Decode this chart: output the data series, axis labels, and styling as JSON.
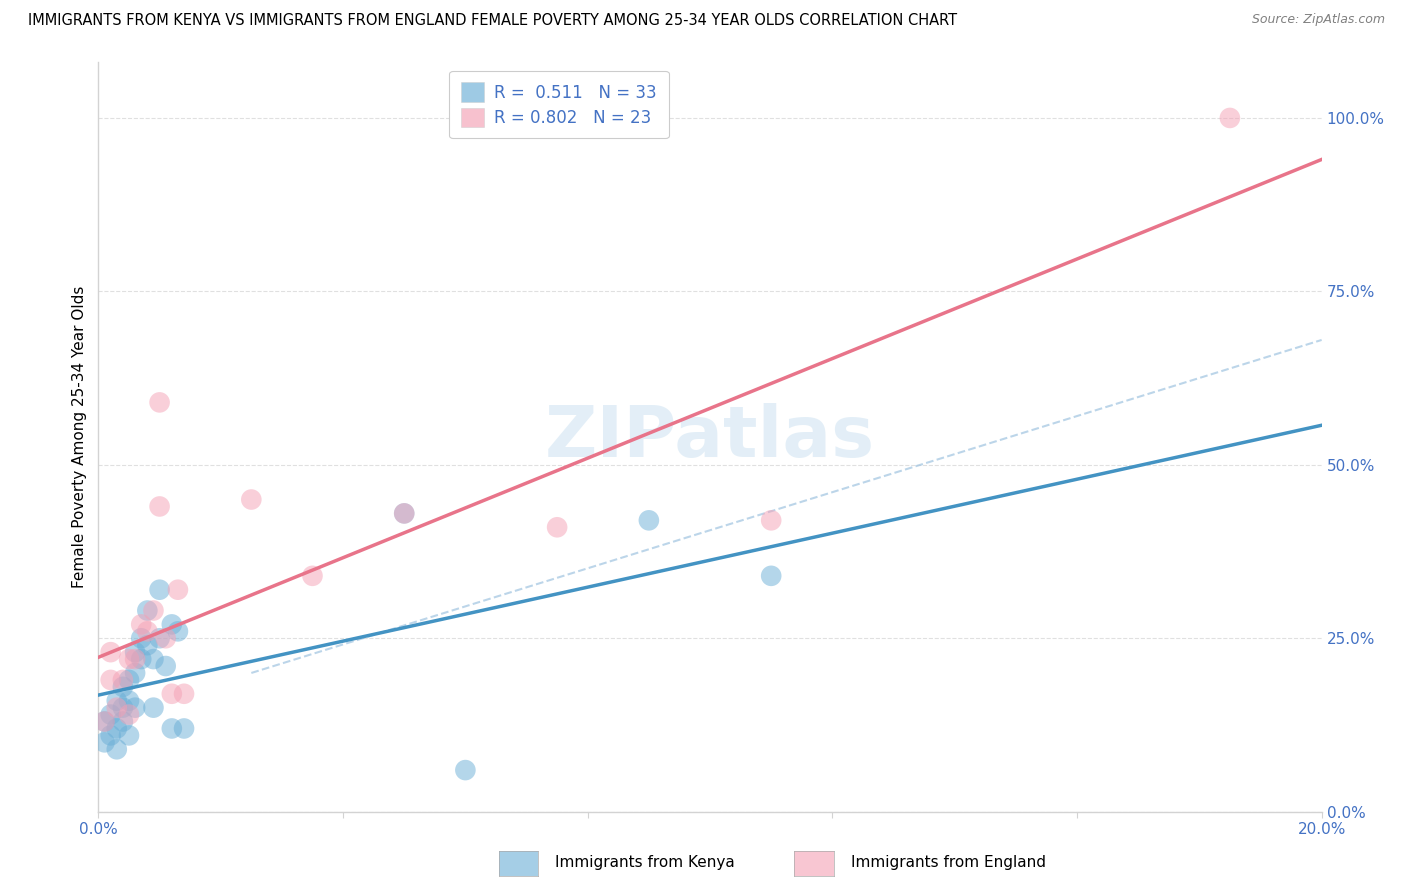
{
  "title": "IMMIGRANTS FROM KENYA VS IMMIGRANTS FROM ENGLAND FEMALE POVERTY AMONG 25-34 YEAR OLDS CORRELATION CHART",
  "source": "Source: ZipAtlas.com",
  "ylabel": "Female Poverty Among 25-34 Year Olds",
  "xlim": [
    0.0,
    0.2
  ],
  "ylim": [
    0.0,
    1.08
  ],
  "right_yticks": [
    0.0,
    0.25,
    0.5,
    0.75,
    1.0
  ],
  "right_yticklabels": [
    "0.0%",
    "25.0%",
    "50.0%",
    "75.0%",
    "100.0%"
  ],
  "xtick_positions": [
    0.0,
    0.04,
    0.08,
    0.12,
    0.16,
    0.2
  ],
  "xticklabels": [
    "0.0%",
    "",
    "",
    "",
    "",
    "20.0%"
  ],
  "kenya_color": "#6aaed6",
  "england_color": "#f4a0b5",
  "kenya_line_color": "#4393c3",
  "england_line_color": "#e8748a",
  "kenya_R": 0.511,
  "kenya_N": 33,
  "england_R": 0.802,
  "england_N": 23,
  "kenya_scatter_x": [
    0.001,
    0.001,
    0.002,
    0.002,
    0.003,
    0.003,
    0.003,
    0.004,
    0.004,
    0.004,
    0.005,
    0.005,
    0.005,
    0.006,
    0.006,
    0.006,
    0.007,
    0.007,
    0.008,
    0.008,
    0.009,
    0.009,
    0.01,
    0.01,
    0.011,
    0.012,
    0.012,
    0.013,
    0.014,
    0.05,
    0.06,
    0.09,
    0.11
  ],
  "kenya_scatter_y": [
    0.1,
    0.13,
    0.11,
    0.14,
    0.09,
    0.12,
    0.16,
    0.13,
    0.15,
    0.18,
    0.11,
    0.16,
    0.19,
    0.15,
    0.2,
    0.23,
    0.22,
    0.25,
    0.24,
    0.29,
    0.15,
    0.22,
    0.32,
    0.25,
    0.21,
    0.27,
    0.12,
    0.26,
    0.12,
    0.43,
    0.06,
    0.42,
    0.34
  ],
  "england_scatter_x": [
    0.001,
    0.002,
    0.002,
    0.003,
    0.004,
    0.005,
    0.005,
    0.006,
    0.007,
    0.008,
    0.009,
    0.01,
    0.01,
    0.011,
    0.012,
    0.013,
    0.014,
    0.025,
    0.035,
    0.05,
    0.075,
    0.11,
    0.185
  ],
  "england_scatter_y": [
    0.13,
    0.19,
    0.23,
    0.15,
    0.19,
    0.14,
    0.22,
    0.22,
    0.27,
    0.26,
    0.29,
    0.44,
    0.59,
    0.25,
    0.17,
    0.32,
    0.17,
    0.45,
    0.34,
    0.43,
    0.41,
    0.42,
    1.0
  ],
  "watermark_text": "ZIPatlas",
  "watermark_color": "#c8dff0",
  "watermark_alpha": 0.5,
  "background_color": "#ffffff",
  "grid_color": "#e0e0e0",
  "legend_label_kenya": "Immigrants from Kenya",
  "legend_label_england": "Immigrants from England",
  "title_fontsize": 10.5,
  "source_fontsize": 9,
  "axis_label_fontsize": 11,
  "tick_fontsize": 11,
  "legend_fontsize": 12
}
